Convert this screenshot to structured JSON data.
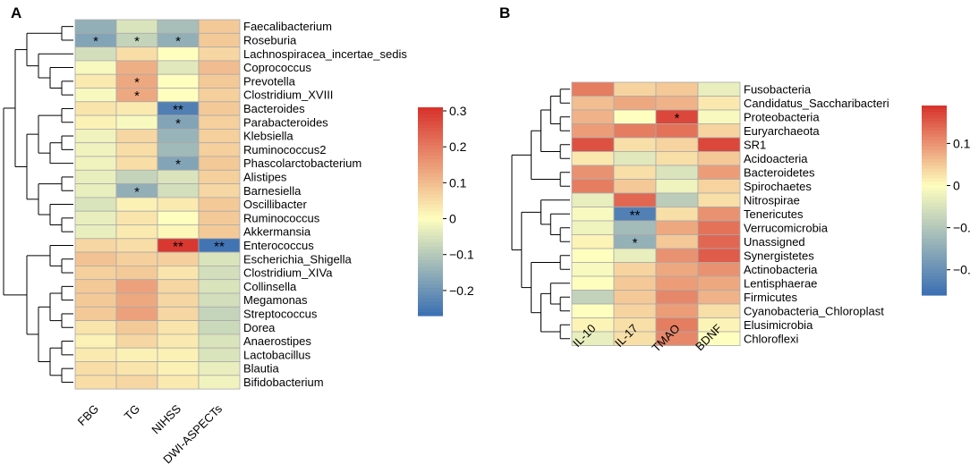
{
  "chart_data": [
    {
      "type": "heatmap",
      "panel_label": "A",
      "columns": [
        "FBG",
        "TG",
        "NIHSS",
        "DWI-ASPECTs"
      ],
      "rows": [
        {
          "name": "Faecalibacterium",
          "values": [
            -0.15,
            -0.05,
            -0.12,
            0.08
          ],
          "marks": [
            "",
            "",
            "",
            ""
          ]
        },
        {
          "name": "Roseburia",
          "values": [
            -0.17,
            -0.08,
            -0.15,
            0.08
          ],
          "marks": [
            "*",
            "*",
            "*",
            ""
          ]
        },
        {
          "name": "Lachnospiracea_incertae_sedis",
          "values": [
            -0.06,
            0.05,
            0.0,
            0.06
          ],
          "marks": [
            "",
            "",
            "",
            ""
          ]
        },
        {
          "name": "Coprococcus",
          "values": [
            -0.01,
            0.12,
            -0.04,
            0.1
          ],
          "marks": [
            "",
            "",
            "",
            ""
          ]
        },
        {
          "name": "Prevotella",
          "values": [
            0.03,
            0.13,
            0.0,
            0.08
          ],
          "marks": [
            "",
            "*",
            "",
            ""
          ]
        },
        {
          "name": "Clostridium_XVIII",
          "values": [
            -0.01,
            0.13,
            0.0,
            0.07
          ],
          "marks": [
            "",
            "*",
            "",
            ""
          ]
        },
        {
          "name": "Bacteroides",
          "values": [
            0.04,
            0.03,
            -0.24,
            0.08
          ],
          "marks": [
            "",
            "",
            "**",
            ""
          ]
        },
        {
          "name": "Parabacteroides",
          "values": [
            0.02,
            -0.01,
            -0.17,
            0.07
          ],
          "marks": [
            "",
            "",
            "*",
            ""
          ]
        },
        {
          "name": "Klebsiella",
          "values": [
            -0.02,
            0.06,
            -0.14,
            0.07
          ],
          "marks": [
            "",
            "",
            "",
            ""
          ]
        },
        {
          "name": "Ruminococcus2",
          "values": [
            -0.02,
            0.05,
            -0.13,
            0.07
          ],
          "marks": [
            "",
            "",
            "",
            ""
          ]
        },
        {
          "name": "Phascolarctobacterium",
          "values": [
            -0.02,
            0.05,
            -0.17,
            0.08
          ],
          "marks": [
            "",
            "",
            "*",
            ""
          ]
        },
        {
          "name": "Alistipes",
          "values": [
            -0.03,
            -0.08,
            -0.05,
            0.07
          ],
          "marks": [
            "",
            "",
            "",
            ""
          ]
        },
        {
          "name": "Barnesiella",
          "values": [
            -0.03,
            -0.15,
            -0.06,
            0.06
          ],
          "marks": [
            "",
            "*",
            "",
            ""
          ]
        },
        {
          "name": "Oscillibacter",
          "values": [
            -0.05,
            0.02,
            0.03,
            0.08
          ],
          "marks": [
            "",
            "",
            "",
            ""
          ]
        },
        {
          "name": "Ruminococcus",
          "values": [
            -0.03,
            0.04,
            0.0,
            0.08
          ],
          "marks": [
            "",
            "",
            "",
            ""
          ]
        },
        {
          "name": "Akkermansia",
          "values": [
            -0.03,
            0.03,
            0.01,
            0.08
          ],
          "marks": [
            "",
            "",
            "",
            ""
          ]
        },
        {
          "name": "Enterococcus",
          "values": [
            0.06,
            0.05,
            0.3,
            -0.26
          ],
          "marks": [
            "",
            "",
            "**",
            "**"
          ]
        },
        {
          "name": "Escherichia_Shigella",
          "values": [
            0.09,
            0.07,
            0.07,
            -0.05
          ],
          "marks": [
            "",
            "",
            "",
            ""
          ]
        },
        {
          "name": "Clostridium_XIVa",
          "values": [
            0.07,
            0.08,
            0.04,
            -0.06
          ],
          "marks": [
            "",
            "",
            "",
            ""
          ]
        },
        {
          "name": "Collinsella",
          "values": [
            0.08,
            0.14,
            0.06,
            -0.05
          ],
          "marks": [
            "",
            "",
            "",
            ""
          ]
        },
        {
          "name": "Megamonas",
          "values": [
            0.08,
            0.13,
            0.06,
            -0.06
          ],
          "marks": [
            "",
            "",
            "",
            ""
          ]
        },
        {
          "name": "Streptococcus",
          "values": [
            0.08,
            0.14,
            0.06,
            -0.08
          ],
          "marks": [
            "",
            "",
            "",
            ""
          ]
        },
        {
          "name": "Dorea",
          "values": [
            0.04,
            0.08,
            0.04,
            -0.07
          ],
          "marks": [
            "",
            "",
            "",
            ""
          ]
        },
        {
          "name": "Anaerostipes",
          "values": [
            0.02,
            0.06,
            0.03,
            -0.05
          ],
          "marks": [
            "",
            "",
            "",
            ""
          ]
        },
        {
          "name": "Lactobacillus",
          "values": [
            0.03,
            0.02,
            0.02,
            -0.05
          ],
          "marks": [
            "",
            "",
            "",
            ""
          ]
        },
        {
          "name": "Blautia",
          "values": [
            0.05,
            0.04,
            0.02,
            -0.03
          ],
          "marks": [
            "",
            "",
            "",
            ""
          ]
        },
        {
          "name": "Bifidobacterium",
          "values": [
            0.05,
            0.06,
            0.03,
            -0.02
          ],
          "marks": [
            "",
            "",
            "",
            ""
          ]
        }
      ],
      "colorbar": {
        "min": -0.27,
        "max": 0.31,
        "ticks": [
          0.3,
          0.2,
          0.1,
          0,
          -0.1,
          -0.2
        ],
        "tick_labels": [
          "0.3",
          "0.2",
          "0.1",
          "0",
          "−0.1",
          "−0.2"
        ]
      }
    },
    {
      "type": "heatmap",
      "panel_label": "B",
      "columns": [
        "IL-10",
        "IL-17",
        "TMAO",
        "BDNF"
      ],
      "rows": [
        {
          "name": "Fusobacteria",
          "values": [
            0.12,
            0.04,
            0.05,
            -0.03
          ],
          "marks": [
            "",
            "",
            "",
            ""
          ]
        },
        {
          "name": "Candidatus_Saccharibacteri",
          "values": [
            0.06,
            0.08,
            0.07,
            0.02
          ],
          "marks": [
            "",
            "",
            "",
            ""
          ]
        },
        {
          "name": "Proteobacteria",
          "values": [
            0.07,
            0.0,
            0.17,
            -0.01
          ],
          "marks": [
            "",
            "",
            "*",
            ""
          ]
        },
        {
          "name": "Euryarchaeota",
          "values": [
            0.09,
            0.12,
            0.13,
            0.04
          ],
          "marks": [
            "",
            "",
            "",
            ""
          ]
        },
        {
          "name": "SR1",
          "values": [
            0.16,
            0.03,
            0.04,
            0.17
          ],
          "marks": [
            "",
            "",
            "",
            ""
          ]
        },
        {
          "name": "Acidoacteria",
          "values": [
            0.02,
            -0.04,
            0.03,
            0.05
          ],
          "marks": [
            "",
            "",
            "",
            ""
          ]
        },
        {
          "name": "Bacteroidetes",
          "values": [
            0.1,
            0.03,
            -0.05,
            0.09
          ],
          "marks": [
            "",
            "",
            "",
            ""
          ]
        },
        {
          "name": "Spirochaetes",
          "values": [
            0.12,
            0.05,
            -0.02,
            0.04
          ],
          "marks": [
            "",
            "",
            "",
            ""
          ]
        },
        {
          "name": "Nitrospirae",
          "values": [
            -0.03,
            0.14,
            -0.09,
            0.03
          ],
          "marks": [
            "",
            "",
            "",
            ""
          ]
        },
        {
          "name": "Tenericutes",
          "values": [
            -0.01,
            -0.23,
            0.03,
            0.1
          ],
          "marks": [
            "",
            "**",
            "",
            ""
          ]
        },
        {
          "name": "Verrucomicrobia",
          "values": [
            -0.02,
            -0.12,
            0.08,
            0.13
          ],
          "marks": [
            "",
            "",
            "",
            ""
          ]
        },
        {
          "name": "Unassigned",
          "values": [
            0.01,
            -0.14,
            0.05,
            0.14
          ],
          "marks": [
            "",
            "*",
            "",
            ""
          ]
        },
        {
          "name": "Synergistetes",
          "values": [
            0.0,
            -0.03,
            0.1,
            0.15
          ],
          "marks": [
            "",
            "",
            "",
            ""
          ]
        },
        {
          "name": "Actinobacteria",
          "values": [
            -0.01,
            0.04,
            0.08,
            0.1
          ],
          "marks": [
            "",
            "",
            "",
            ""
          ]
        },
        {
          "name": "Lentisphaerae",
          "values": [
            0.0,
            0.05,
            0.09,
            0.08
          ],
          "marks": [
            "",
            "",
            "",
            ""
          ]
        },
        {
          "name": "Firmicutes",
          "values": [
            -0.08,
            0.05,
            0.11,
            0.07
          ],
          "marks": [
            "",
            "",
            "",
            ""
          ]
        },
        {
          "name": "Cyanobacteria_Chloroplast",
          "values": [
            0.0,
            0.04,
            0.09,
            0.03
          ],
          "marks": [
            "",
            "",
            "",
            ""
          ]
        },
        {
          "name": "Elusimicrobia",
          "values": [
            0.01,
            0.03,
            0.12,
            0.01
          ],
          "marks": [
            "",
            "",
            "",
            ""
          ]
        },
        {
          "name": "Chloroflexi",
          "values": [
            -0.03,
            0.03,
            0.11,
            0.0
          ],
          "marks": [
            "",
            "",
            "",
            ""
          ]
        }
      ],
      "colorbar": {
        "min": -0.26,
        "max": 0.19,
        "ticks": [
          0.1,
          0,
          -0.1,
          -0.2
        ],
        "tick_labels": [
          "0.1",
          "0",
          "−0.1",
          "−0.2"
        ]
      }
    }
  ],
  "colors": {
    "low": "#3b6fb3",
    "mid": "#fefebe",
    "high": "#d7312b",
    "cell_border": "#aaaaaa"
  }
}
